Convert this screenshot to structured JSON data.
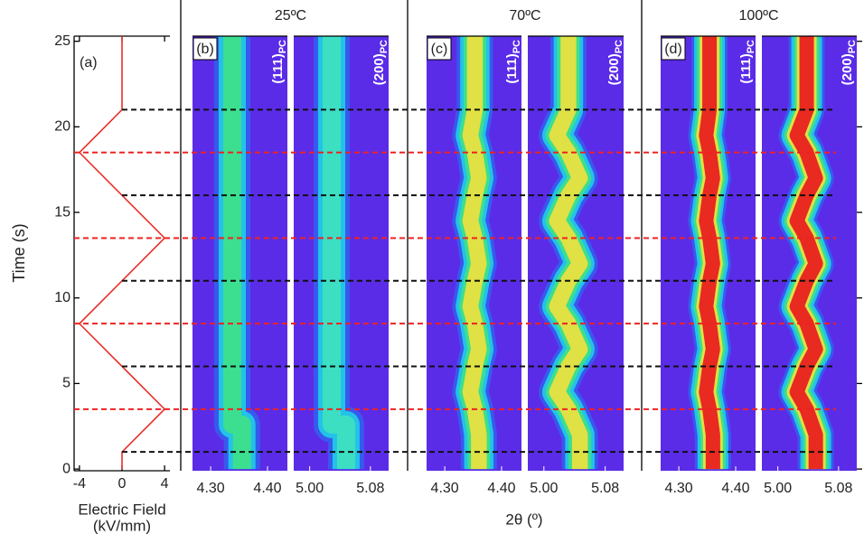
{
  "chart_data": [
    {
      "type": "line",
      "panel": "(a)",
      "ylabel": "Time (s)",
      "xlabel": [
        "Electric Field",
        "(kV/mm)"
      ],
      "xlim": [
        -4.5,
        4.5
      ],
      "xticks": [
        -4,
        0,
        4
      ],
      "ylim": [
        -0.1,
        25.3
      ],
      "yticks": [
        0,
        5,
        10,
        15,
        20,
        25
      ],
      "series": [
        {
          "color": "#e8302a",
          "x": [
            0,
            0,
            4,
            -4,
            4,
            -4,
            0,
            0
          ],
          "values": [
            0,
            1,
            3.5,
            8.5,
            13.5,
            18.5,
            21,
            25.3
          ]
        }
      ]
    },
    {
      "type": "heatmap",
      "title": "25ºC",
      "panel": "(b)",
      "reflection": "(111)",
      "reflection_sub": "PC",
      "xlim": [
        4.268,
        4.435
      ],
      "xticks": [
        {
          "value": 4.3,
          "label": "4.30"
        },
        {
          "value": 4.4,
          "label": "4.40"
        }
      ],
      "ylim": [
        -0.1,
        25.3
      ],
      "background": "#5b2ce8",
      "band_colors": [
        "#2a6cf0",
        "#22c8e8",
        "#3ee08a"
      ],
      "peak": {
        "time": [
          0,
          2.6,
          2.6,
          25.3
        ],
        "position": [
          4.355,
          4.355,
          4.338,
          4.338
        ]
      }
    },
    {
      "type": "heatmap",
      "reflection": "(200)",
      "reflection_sub": "PC",
      "xlim": [
        4.979,
        5.104
      ],
      "xticks": [
        {
          "value": 5,
          "label": "5.00"
        },
        5.08
      ],
      "ylim": [
        -0.1,
        25.3
      ],
      "background": "#5b2ce8",
      "band_colors": [
        "#2a6cf0",
        "#22c8e8",
        "#3ee0c0"
      ],
      "peak": {
        "time": [
          0,
          2.6,
          2.6,
          25.3
        ],
        "position": [
          5.048,
          5.048,
          5.029,
          5.029
        ]
      }
    },
    {
      "type": "heatmap",
      "title": "70ºC",
      "panel": "(c)",
      "reflection": "(111)",
      "reflection_sub": "PC",
      "xlim": [
        4.268,
        4.435
      ],
      "xticks": [
        {
          "value": 4.3,
          "label": "4.30"
        },
        {
          "value": 4.4,
          "label": "4.40"
        }
      ],
      "ylim": [
        -0.1,
        25.3
      ],
      "background": "#5b2ce8",
      "band_colors": [
        "#2a6cf0",
        "#22c8e8",
        "#3ee08a",
        "#e8e040"
      ],
      "peak": {
        "time": [
          0,
          1,
          2,
          3.5,
          4.5,
          6,
          7,
          8.5,
          9.5,
          11,
          12,
          13.5,
          14.5,
          16,
          17,
          18.5,
          19.5,
          21,
          25.3
        ],
        "position": [
          4.36,
          4.36,
          4.36,
          4.353,
          4.345,
          4.353,
          4.36,
          4.353,
          4.345,
          4.353,
          4.36,
          4.353,
          4.345,
          4.353,
          4.36,
          4.353,
          4.345,
          4.353,
          4.353
        ]
      }
    },
    {
      "type": "heatmap",
      "reflection": "(200)",
      "reflection_sub": "PC",
      "xlim": [
        4.979,
        5.104
      ],
      "xticks": [
        {
          "value": 5,
          "label": "5.00"
        },
        5.08
      ],
      "ylim": [
        -0.1,
        25.3
      ],
      "background": "#5b2ce8",
      "band_colors": [
        "#2a6cf0",
        "#22c8e8",
        "#3ee08a",
        "#e8e040"
      ],
      "peak": {
        "time": [
          0,
          1,
          2,
          3.5,
          4.5,
          6,
          7,
          8.5,
          9.5,
          11,
          12,
          13.5,
          14.5,
          16,
          17,
          18.5,
          19.5,
          21,
          25.3
        ],
        "position": [
          5.047,
          5.047,
          5.047,
          5.032,
          5.017,
          5.032,
          5.047,
          5.032,
          5.017,
          5.032,
          5.047,
          5.032,
          5.017,
          5.032,
          5.047,
          5.032,
          5.017,
          5.032,
          5.032
        ]
      }
    },
    {
      "type": "heatmap",
      "title": "100ºC",
      "panel": "(d)",
      "reflection": "(111)",
      "reflection_sub": "PC",
      "xlim": [
        4.268,
        4.435
      ],
      "xticks": [
        {
          "value": 4.3,
          "label": "4.30"
        },
        {
          "value": 4.4,
          "label": "4.40"
        }
      ],
      "ylim": [
        -0.1,
        25.3
      ],
      "background": "#5b2ce8",
      "band_colors": [
        "#2a6cf0",
        "#22c8e8",
        "#3ee08a",
        "#e8e040",
        "#e82020"
      ],
      "peak": {
        "time": [
          0,
          1,
          2,
          3.5,
          4.5,
          6,
          7,
          8.5,
          9.5,
          11,
          12,
          13.5,
          14.5,
          16,
          17,
          18.5,
          19.5,
          21,
          25.3
        ],
        "position": [
          4.36,
          4.36,
          4.36,
          4.354,
          4.348,
          4.354,
          4.36,
          4.354,
          4.348,
          4.354,
          4.36,
          4.354,
          4.348,
          4.354,
          4.36,
          4.354,
          4.348,
          4.354,
          4.354
        ]
      }
    },
    {
      "type": "heatmap",
      "reflection": "(200)",
      "reflection_sub": "PC",
      "xlim": [
        4.979,
        5.104
      ],
      "xticks": [
        {
          "value": 5,
          "label": "5.00"
        },
        5.08
      ],
      "ylim": [
        -0.1,
        25.3
      ],
      "background": "#5b2ce8",
      "band_colors": [
        "#2a6cf0",
        "#22c8e8",
        "#3ee08a",
        "#e8e040",
        "#e82020"
      ],
      "peak": {
        "time": [
          0,
          1,
          2,
          3.5,
          4.5,
          6,
          7,
          8.5,
          9.5,
          11,
          12,
          13.5,
          14.5,
          16,
          17,
          18.5,
          19.5,
          21,
          25.3
        ],
        "position": [
          5.05,
          5.05,
          5.05,
          5.038,
          5.025,
          5.038,
          5.05,
          5.038,
          5.025,
          5.038,
          5.05,
          5.038,
          5.025,
          5.038,
          5.05,
          5.038,
          5.025,
          5.038,
          5.038
        ]
      }
    }
  ],
  "figure": {
    "xlabel": "2θ (º)",
    "dashed_lines": [
      {
        "color": "#ee2222",
        "times": [
          3.5,
          8.5,
          13.5,
          18.5
        ]
      },
      {
        "color": "#111111",
        "times": [
          1,
          6,
          11,
          16,
          21
        ]
      }
    ]
  }
}
